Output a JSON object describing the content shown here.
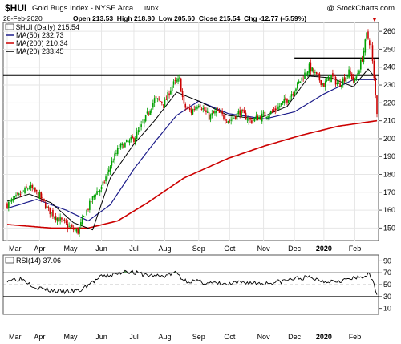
{
  "header": {
    "ticker": "$HUI",
    "name": "Gold Bugs Index - NYSE Arca",
    "exchange_tag": "INDX",
    "watermark": "@ StockCharts.com",
    "date": "28-Feb-2020",
    "ohlc_text": "Open 213.53  High 218.80  Low 205.60  Close 215.54  Chg -12.77 (-5.59%)",
    "close_marker": "▼"
  },
  "legend": [
    {
      "label": "$HUI (Daily) 215.54",
      "color": "#000000"
    },
    {
      "label": "MA(50) 232.73",
      "color": "#1c1c8a"
    },
    {
      "label": "MA(200) 210.34",
      "color": "#cc0000"
    },
    {
      "label": "MA(20) 233.45",
      "color": "#000000"
    }
  ],
  "rsi_label": "RSI(14) 37.06",
  "colors": {
    "up": "#00a000",
    "down": "#cc0000",
    "ma50": "#1c1c8a",
    "ma200": "#cc0000",
    "ma20": "#000000",
    "grid": "#e6e6e6",
    "rsi_fill": "#5a8f5a"
  },
  "chart_data": {
    "type": "candlestick",
    "x_tick_labels": [
      "Mar",
      "Apr",
      "May",
      "Jun",
      "Jul",
      "Aug",
      "Sep",
      "Oct",
      "Nov",
      "Dec",
      "2020",
      "Feb"
    ],
    "x_tick_days": [
      0,
      22,
      43,
      64,
      86,
      107,
      130,
      151,
      174,
      195,
      215,
      236
    ],
    "y_ticks": [
      150,
      160,
      170,
      180,
      190,
      200,
      210,
      220,
      230,
      240,
      250,
      260
    ],
    "ylim": [
      143,
      265
    ],
    "trendline_levels": [
      235.5,
      245.0
    ],
    "price_anchors": [
      [
        0,
        163
      ],
      [
        8,
        168
      ],
      [
        15,
        173
      ],
      [
        22,
        168
      ],
      [
        28,
        160
      ],
      [
        35,
        155
      ],
      [
        43,
        150
      ],
      [
        48,
        148
      ],
      [
        53,
        158
      ],
      [
        60,
        170
      ],
      [
        64,
        172
      ],
      [
        70,
        185
      ],
      [
        76,
        195
      ],
      [
        82,
        198
      ],
      [
        86,
        200
      ],
      [
        92,
        208
      ],
      [
        100,
        222
      ],
      [
        107,
        220
      ],
      [
        112,
        230
      ],
      [
        117,
        233
      ],
      [
        120,
        218
      ],
      [
        125,
        215
      ],
      [
        130,
        220
      ],
      [
        137,
        212
      ],
      [
        142,
        215
      ],
      [
        151,
        210
      ],
      [
        158,
        215
      ],
      [
        165,
        210
      ],
      [
        174,
        213
      ],
      [
        180,
        215
      ],
      [
        190,
        222
      ],
      [
        197,
        230
      ],
      [
        205,
        240
      ],
      [
        210,
        235
      ],
      [
        215,
        230
      ],
      [
        220,
        235
      ],
      [
        225,
        230
      ],
      [
        232,
        237
      ],
      [
        236,
        232
      ],
      [
        241,
        245
      ],
      [
        244,
        258
      ],
      [
        247,
        252
      ],
      [
        249,
        233
      ],
      [
        251,
        215
      ]
    ],
    "ma50_anchors": [
      [
        0,
        161
      ],
      [
        20,
        166
      ],
      [
        40,
        160
      ],
      [
        55,
        154
      ],
      [
        70,
        163
      ],
      [
        86,
        183
      ],
      [
        100,
        198
      ],
      [
        115,
        213
      ],
      [
        130,
        221
      ],
      [
        150,
        214
      ],
      [
        175,
        211
      ],
      [
        195,
        215
      ],
      [
        215,
        225
      ],
      [
        235,
        233
      ],
      [
        251,
        233
      ]
    ],
    "ma200_anchors": [
      [
        0,
        152
      ],
      [
        30,
        150
      ],
      [
        55,
        150
      ],
      [
        75,
        154
      ],
      [
        95,
        164
      ],
      [
        120,
        178
      ],
      [
        150,
        189
      ],
      [
        175,
        196
      ],
      [
        200,
        202
      ],
      [
        225,
        207
      ],
      [
        251,
        210
      ]
    ],
    "ma20_anchors": [
      [
        0,
        165
      ],
      [
        15,
        169
      ],
      [
        30,
        164
      ],
      [
        45,
        153
      ],
      [
        58,
        149
      ],
      [
        70,
        178
      ],
      [
        86,
        197
      ],
      [
        100,
        210
      ],
      [
        115,
        226
      ],
      [
        130,
        221
      ],
      [
        150,
        213
      ],
      [
        170,
        211
      ],
      [
        190,
        218
      ],
      [
        205,
        235
      ],
      [
        220,
        234
      ],
      [
        235,
        229
      ],
      [
        245,
        239
      ],
      [
        251,
        233
      ]
    ],
    "rsi_ticks": [
      10,
      30,
      50,
      70,
      90
    ],
    "rsi_ylim": [
      0,
      100
    ],
    "rsi_levels": [
      70,
      30
    ],
    "rsi_anchors": [
      [
        0,
        58
      ],
      [
        10,
        60
      ],
      [
        20,
        45
      ],
      [
        30,
        40
      ],
      [
        40,
        38
      ],
      [
        50,
        40
      ],
      [
        55,
        50
      ],
      [
        64,
        63
      ],
      [
        75,
        68
      ],
      [
        80,
        74
      ],
      [
        86,
        70
      ],
      [
        95,
        66
      ],
      [
        105,
        64
      ],
      [
        115,
        70
      ],
      [
        120,
        57
      ],
      [
        130,
        55
      ],
      [
        140,
        52
      ],
      [
        150,
        50
      ],
      [
        160,
        54
      ],
      [
        174,
        52
      ],
      [
        185,
        55
      ],
      [
        195,
        60
      ],
      [
        205,
        62
      ],
      [
        215,
        56
      ],
      [
        225,
        57
      ],
      [
        235,
        60
      ],
      [
        242,
        63
      ],
      [
        245,
        69
      ],
      [
        248,
        55
      ],
      [
        251,
        37
      ]
    ]
  }
}
